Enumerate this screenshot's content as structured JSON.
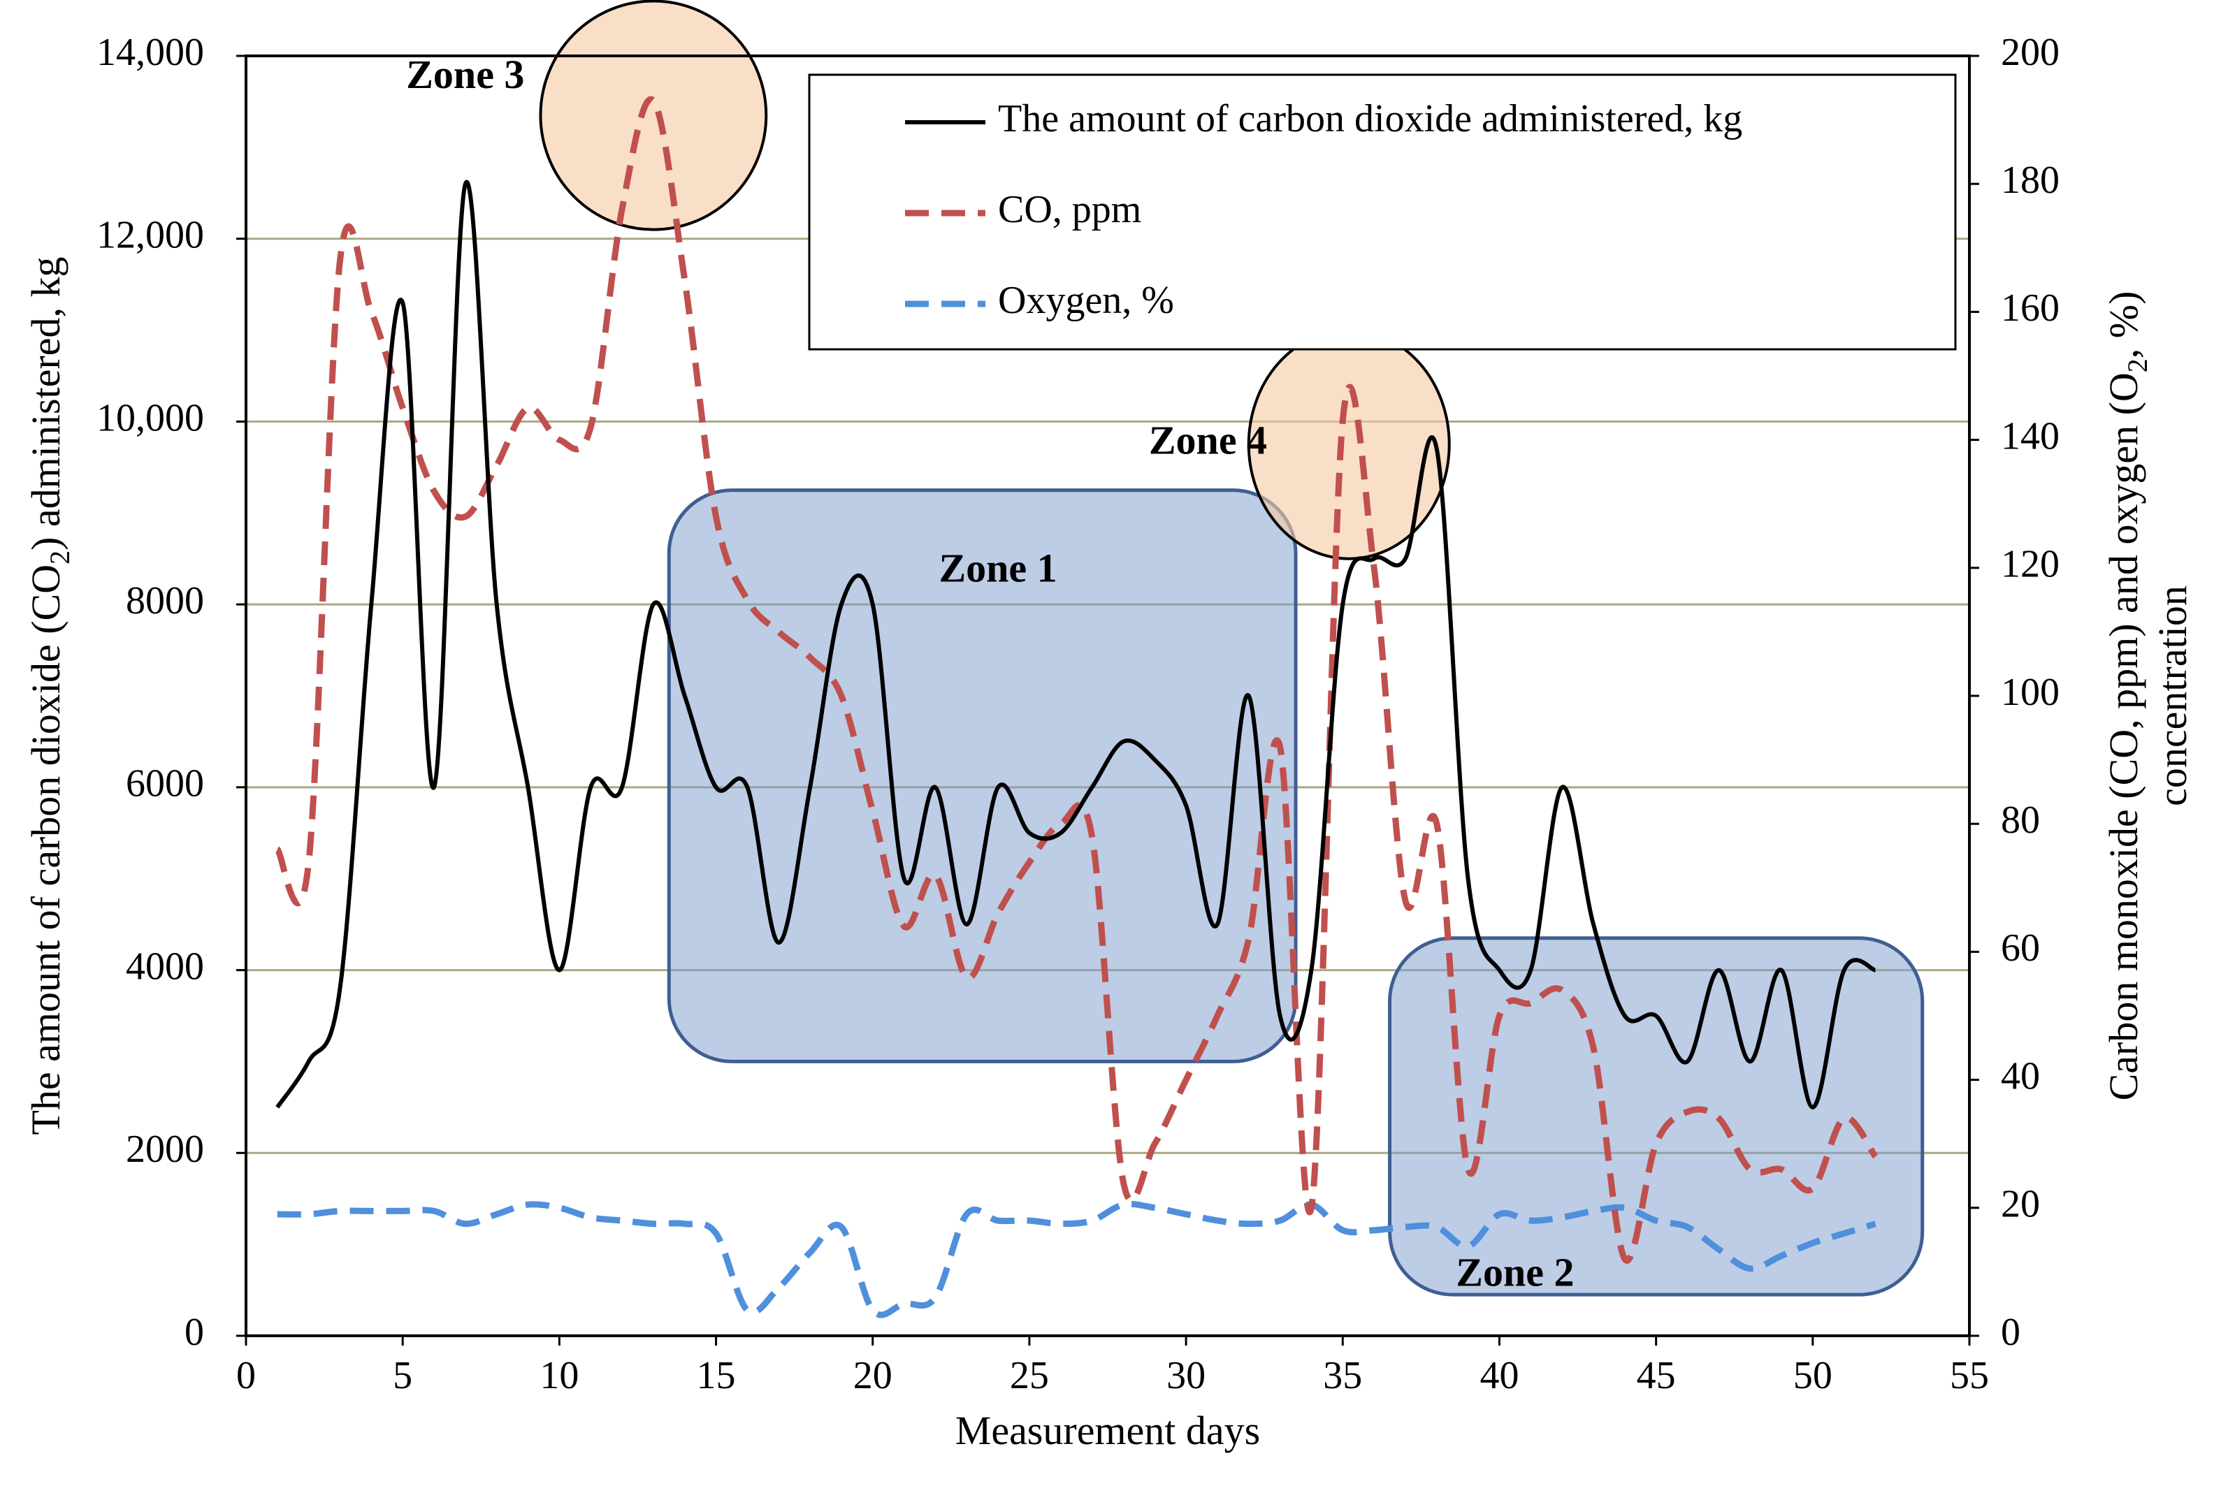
{
  "chart_data": {
    "type": "line",
    "x_axis": {
      "label": "Measurement  days",
      "range": [
        0,
        55
      ],
      "ticks": [
        0,
        5,
        10,
        15,
        20,
        25,
        30,
        35,
        40,
        45,
        50,
        55
      ]
    },
    "y_axis_left": {
      "label_prefix": "The amount of carbon dioxide (CO",
      "label_sub": "2",
      "label_suffix": ") administered,  kg",
      "range": [
        0,
        14000
      ],
      "ticks": [
        0,
        2000,
        4000,
        6000,
        8000,
        10000,
        12000,
        14000
      ],
      "tick_labels": [
        "0",
        "2000",
        "4000",
        "6000",
        "8000",
        "10,000",
        "12,000",
        "14,000"
      ]
    },
    "y_axis_right": {
      "label_line1_prefix": "Carbon monoxide  (CO, ppm) and oxygen  (O",
      "label_line1_sub": "2",
      "label_line1_suffix": ", %)",
      "label_line2": "concentration",
      "range": [
        0,
        200
      ],
      "ticks": [
        0,
        20,
        40,
        60,
        80,
        100,
        120,
        140,
        160,
        180,
        200
      ]
    },
    "grid": "horizontal",
    "legend_position": "top-right",
    "series": [
      {
        "name": "The amount of carbon dioxide administered, kg",
        "axis": "left",
        "color": "#000000",
        "dash": "solid",
        "x": [
          1,
          2,
          3,
          4,
          5,
          6,
          7,
          8,
          9,
          10,
          11,
          12,
          13,
          14,
          15,
          16,
          17,
          18,
          19,
          20,
          21,
          22,
          23,
          24,
          25,
          26,
          27,
          28,
          29,
          30,
          31,
          32,
          33,
          34,
          35,
          36,
          37,
          38,
          39,
          40,
          41,
          42,
          43,
          44,
          45,
          46,
          47,
          48,
          49,
          50,
          51,
          52
        ],
        "values": [
          2500,
          3000,
          3800,
          8000,
          11300,
          6000,
          12600,
          8000,
          6000,
          4000,
          6000,
          6000,
          8000,
          7000,
          6000,
          6000,
          4300,
          6000,
          8000,
          8000,
          5000,
          6000,
          4500,
          6000,
          5500,
          5500,
          6000,
          6500,
          6300,
          5800,
          4500,
          7000,
          3500,
          4000,
          8000,
          8500,
          8500,
          9700,
          5000,
          4000,
          4000,
          6000,
          4500,
          3500,
          3500,
          3000,
          4000,
          3000,
          4000,
          2500,
          4000,
          4000
        ]
      },
      {
        "name": "CO, ppm",
        "axis": "right",
        "color": "#c0504d",
        "dash": "dashed",
        "x": [
          1,
          2,
          3,
          4,
          5,
          6,
          7,
          8,
          9,
          10,
          11,
          12,
          13,
          14,
          15,
          16,
          17,
          18,
          19,
          20,
          21,
          22,
          23,
          24,
          25,
          26,
          27,
          28,
          29,
          30,
          31,
          32,
          33,
          34,
          35,
          36,
          37,
          38,
          39,
          40,
          41,
          42,
          43,
          44,
          45,
          46,
          47,
          48,
          49,
          50,
          51,
          52
        ],
        "values": [
          76,
          74,
          168,
          160,
          145,
          132,
          128,
          136,
          145,
          140,
          142,
          176,
          193,
          165,
          128,
          115,
          110,
          106,
          100,
          82,
          64,
          72,
          56,
          66,
          74,
          80,
          78,
          24,
          30,
          40,
          50,
          62,
          92,
          20,
          143,
          120,
          68,
          80,
          26,
          50,
          52,
          54,
          45,
          12,
          30,
          35,
          34,
          26,
          26,
          23,
          34,
          28
        ]
      },
      {
        "name": "Oxygen, %",
        "axis": "right",
        "color": "#4f8fdc",
        "dash": "dashed",
        "x": [
          1,
          2,
          3,
          4,
          5,
          6,
          7,
          8,
          9,
          10,
          11,
          12,
          13,
          14,
          15,
          16,
          17,
          18,
          19,
          20,
          21,
          22,
          23,
          24,
          25,
          26,
          27,
          28,
          29,
          30,
          31,
          32,
          33,
          34,
          35,
          36,
          37,
          38,
          39,
          40,
          41,
          42,
          43,
          44,
          45,
          46,
          47,
          48,
          49,
          50,
          51,
          52
        ],
        "values": [
          19,
          19,
          19.5,
          19.5,
          19.5,
          19.5,
          17.5,
          19,
          20.5,
          20,
          18.5,
          18,
          17.5,
          17.5,
          16,
          4,
          7.5,
          13,
          17,
          4,
          5,
          6,
          19,
          18,
          18,
          17.5,
          18,
          20.5,
          20,
          19,
          18,
          17.5,
          18,
          20.5,
          16.5,
          16.5,
          17,
          17,
          14,
          19,
          18,
          18.5,
          19.5,
          20,
          18,
          17,
          13.5,
          10.5,
          12.5,
          14.5,
          16,
          17.5
        ]
      }
    ],
    "annotations": [
      {
        "label": "Zone 1",
        "shape": "rounded-rect",
        "x_from": 13.5,
        "x_to": 33.5,
        "y_from": 3000,
        "y_to": 9250,
        "label_x": 24,
        "label_y": 8350
      },
      {
        "label": "Zone 2",
        "shape": "rounded-rect",
        "x_from": 36.5,
        "x_to": 53.5,
        "y_from": 450,
        "y_to": 4350,
        "label_x": 40.5,
        "label_y": 650
      },
      {
        "label": "Zone 3",
        "shape": "ellipse",
        "cx": 13,
        "cy": 13350,
        "rx": 3.6,
        "ry": 1250,
        "label_x": 7,
        "label_y": 13750
      },
      {
        "label": "Zone 4",
        "shape": "ellipse",
        "cx": 35.2,
        "cy": 9750,
        "rx": 3.2,
        "ry": 1250,
        "label_x": 30.7,
        "label_y": 9750
      }
    ]
  }
}
